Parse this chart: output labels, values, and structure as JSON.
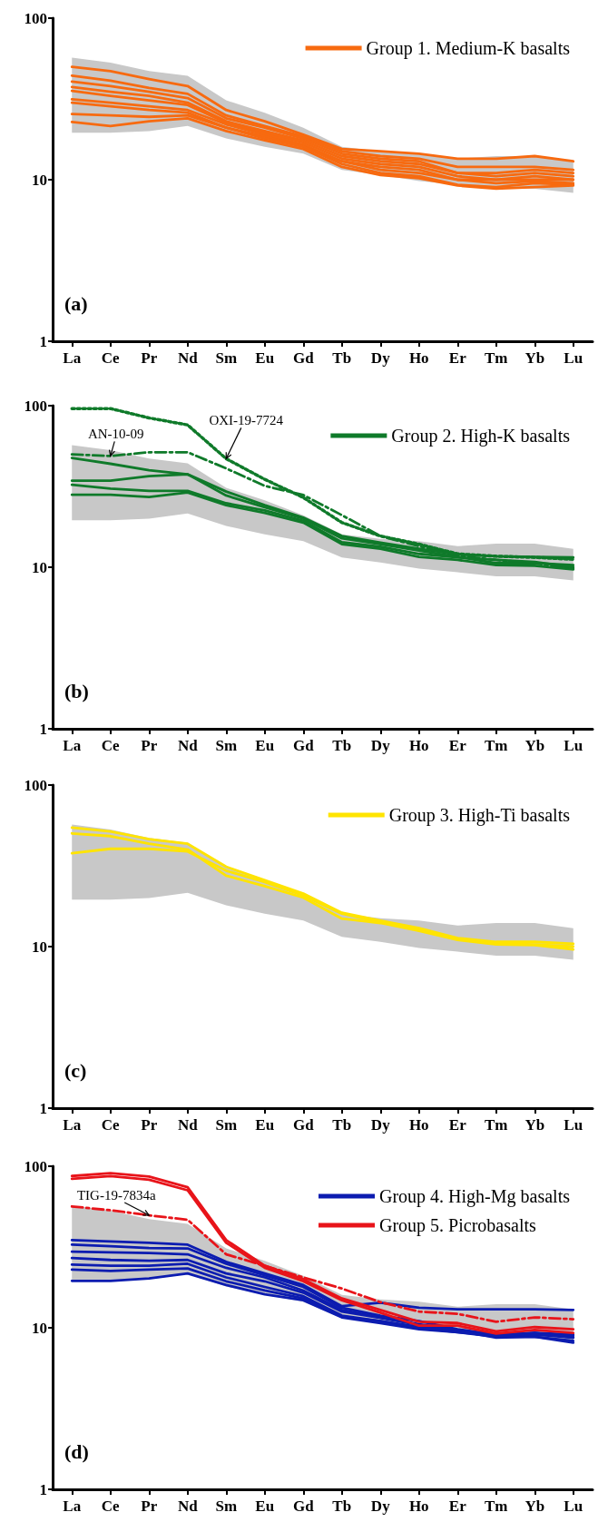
{
  "chart_data": [
    {
      "type": "line",
      "title": "(a)",
      "categories": [
        "La",
        "Ce",
        "Pr",
        "Nd",
        "Sm",
        "Eu",
        "Gd",
        "Tb",
        "Dy",
        "Ho",
        "Er",
        "Tm",
        "Yb",
        "Lu"
      ],
      "log": true,
      "ylim": [
        1,
        100
      ],
      "yticks": [
        1,
        10,
        100
      ],
      "legend": "top right",
      "series": [
        {
          "color": "#c8c8c8",
          "values": [
            null,
            null,
            null,
            null,
            null,
            null,
            null,
            null,
            null,
            null,
            null,
            null,
            null,
            null
          ],
          "lower": [
            19.5,
            19.5,
            20,
            21.5,
            18,
            16,
            14.5,
            11.5,
            10.7,
            9.8,
            9.3,
            8.8,
            8.8,
            8.3
          ],
          "upper": [
            57,
            53,
            47,
            44,
            31,
            26,
            21,
            16,
            15,
            14.5,
            13.5,
            14,
            14,
            13
          ]
        },
        {
          "name": "Group 1. Medium-K basalts",
          "color": "#f76a10",
          "values": [
            50,
            47,
            42,
            38,
            27,
            23,
            19,
            15.5,
            15,
            14.5,
            13.5,
            13.5,
            14,
            13
          ]
        },
        {
          "color": "#f76a10",
          "values": [
            44,
            41,
            37,
            34,
            25,
            21.5,
            18.5,
            15,
            14,
            13.5,
            12,
            12,
            12,
            11.5
          ]
        },
        {
          "color": "#f76a10",
          "values": [
            40.5,
            38,
            35,
            32,
            24,
            21,
            18,
            14.5,
            13.5,
            13,
            11,
            11,
            11.5,
            11
          ]
        },
        {
          "color": "#f76a10",
          "values": [
            37.5,
            35,
            33,
            30,
            23,
            20,
            17.5,
            14,
            13,
            12.5,
            11,
            10.5,
            11,
            10.5
          ]
        },
        {
          "color": "#f76a10",
          "values": [
            35.5,
            33,
            31,
            29,
            22.5,
            19.5,
            17,
            13.5,
            12.5,
            12,
            10.5,
            10,
            10.5,
            10
          ]
        },
        {
          "color": "#f76a10",
          "values": [
            31.5,
            30,
            28.5,
            27,
            22,
            19,
            16.5,
            13,
            12,
            11.5,
            10,
            10,
            10,
            10
          ]
        },
        {
          "color": "#f76a10",
          "values": [
            30,
            28.5,
            27,
            26,
            21,
            18.5,
            16,
            13,
            11.5,
            11,
            10,
            9.5,
            9.8,
            9.5
          ]
        },
        {
          "color": "#f76a10",
          "values": [
            25.5,
            25,
            24.5,
            25,
            21,
            18,
            16,
            12.5,
            11,
            10.5,
            9.3,
            9,
            9.5,
            9.3
          ]
        },
        {
          "color": "#f76a10",
          "values": [
            22.8,
            21.5,
            23,
            24,
            20,
            17.5,
            15.5,
            12,
            10.7,
            10.2,
            9.2,
            8.8,
            9,
            9.2
          ]
        }
      ]
    },
    {
      "type": "line",
      "title": "(b)",
      "categories": [
        "La",
        "Ce",
        "Pr",
        "Nd",
        "Sm",
        "Eu",
        "Gd",
        "Tb",
        "Dy",
        "Ho",
        "Er",
        "Tm",
        "Yb",
        "Lu"
      ],
      "log": true,
      "ylim": [
        1,
        100
      ],
      "yticks": [
        1,
        10,
        100
      ],
      "legend": "top right",
      "annotations": [
        {
          "text": "AN-10-09",
          "x": "Ce",
          "y": 48.8
        },
        {
          "text": "OXI-19-7724",
          "x": "Sm",
          "y": 47
        }
      ],
      "series": [
        {
          "color": "#c8c8c8",
          "values": [
            null,
            null,
            null,
            null,
            null,
            null,
            null,
            null,
            null,
            null,
            null,
            null,
            null,
            null
          ],
          "lower": [
            19.5,
            19.5,
            20,
            21.5,
            18,
            16,
            14.5,
            11.5,
            10.7,
            9.8,
            9.3,
            8.8,
            8.8,
            8.3
          ],
          "upper": [
            57,
            53,
            47,
            44,
            31,
            26,
            21,
            16,
            15,
            14.5,
            13.5,
            14,
            14,
            13
          ]
        },
        {
          "color": "#0f7a2a",
          "line_style": "dotted",
          "values": [
            96,
            96,
            84,
            76,
            47,
            35,
            27,
            18.9,
            15.6,
            13.9,
            12.1,
            11.7,
            11.5,
            11.2
          ]
        },
        {
          "color": "#0f7a2a",
          "line_style": "dashed",
          "values": [
            50,
            48.8,
            51.5,
            51.5,
            40.9,
            31.9,
            28,
            21,
            15.6,
            13.5,
            11.8,
            11.1,
            10.6,
            9.8
          ]
        },
        {
          "name": "Group 2. High-K basalts",
          "color": "#0f7a2a",
          "values": [
            47.5,
            43.7,
            39.8,
            37.6,
            29.4,
            24.2,
            20.3,
            15.6,
            14.2,
            13,
            12,
            11.7,
            11.6,
            11.5
          ]
        },
        {
          "color": "#0f7a2a",
          "values": [
            34.3,
            34.3,
            36.6,
            37.6,
            27.8,
            23.5,
            20,
            15.1,
            13.9,
            12.7,
            11.6,
            10.6,
            10.6,
            10.3
          ]
        },
        {
          "color": "#0f7a2a",
          "values": [
            32.4,
            30.7,
            29.7,
            29.7,
            24.9,
            22.5,
            19.4,
            14.3,
            13.4,
            12.1,
            11.5,
            11.1,
            10.8,
            10
          ]
        },
        {
          "color": "#0f7a2a",
          "values": [
            28.1,
            28.1,
            27.2,
            29,
            24.2,
            21.7,
            18.9,
            13.9,
            13,
            11.6,
            11.1,
            10.3,
            10.2,
            9.7
          ]
        }
      ]
    },
    {
      "type": "line",
      "title": "(c)",
      "categories": [
        "La",
        "Ce",
        "Pr",
        "Nd",
        "Sm",
        "Eu",
        "Gd",
        "Tb",
        "Dy",
        "Ho",
        "Er",
        "Tm",
        "Yb",
        "Lu"
      ],
      "log": true,
      "ylim": [
        1,
        100
      ],
      "yticks": [
        1,
        10,
        100
      ],
      "legend": "top right",
      "series": [
        {
          "color": "#c8c8c8",
          "values": [
            null,
            null,
            null,
            null,
            null,
            null,
            null,
            null,
            null,
            null,
            null,
            null,
            null,
            null
          ],
          "lower": [
            19.5,
            19.5,
            20,
            21.5,
            18,
            16,
            14.5,
            11.5,
            10.7,
            9.8,
            9.3,
            8.8,
            8.8,
            8.3
          ],
          "upper": [
            57,
            53,
            47,
            44,
            31,
            26,
            21,
            16,
            15,
            14.5,
            13.5,
            14,
            14,
            13
          ]
        },
        {
          "name": "Group 3. High-Ti basalts",
          "color": "#ffe400",
          "values": [
            54.5,
            51.6,
            46.2,
            43.3,
            31.2,
            25.8,
            21.3,
            16.2,
            14.5,
            13,
            11.3,
            10.7,
            10.7,
            10.4
          ]
        },
        {
          "color": "#ffe400",
          "values": [
            50.2,
            48.3,
            43.3,
            39.9,
            27.5,
            23.7,
            20.1,
            14.9,
            14,
            12.5,
            11,
            10.3,
            10.2,
            9.6
          ]
        },
        {
          "color": "#ffe400",
          "values": [
            37.8,
            40.3,
            40.3,
            38.8,
            29.5,
            25.1,
            20.7,
            16,
            14.1,
            12.7,
            11.2,
            10.4,
            10.3,
            10
          ]
        }
      ]
    },
    {
      "type": "line",
      "title": "(d)",
      "categories": [
        "La",
        "Ce",
        "Pr",
        "Nd",
        "Sm",
        "Eu",
        "Gd",
        "Tb",
        "Dy",
        "Ho",
        "Er",
        "Tm",
        "Yb",
        "Lu"
      ],
      "log": true,
      "ylim": [
        1,
        100
      ],
      "yticks": [
        1,
        10,
        100
      ],
      "legend": "top right",
      "annotations": [
        {
          "text": "TIG-19-7834a",
          "x": "Pr",
          "y": 49.7
        }
      ],
      "series": [
        {
          "color": "#c8c8c8",
          "values": [
            null,
            null,
            null,
            null,
            null,
            null,
            null,
            null,
            null,
            null,
            null,
            null,
            null,
            null
          ],
          "lower": [
            19.5,
            19.5,
            20,
            21.5,
            18,
            16,
            14.5,
            11.5,
            10.7,
            9.8,
            9.3,
            8.8,
            8.8,
            8.3
          ],
          "upper": [
            57,
            53,
            47,
            44,
            31,
            26,
            21,
            16,
            15,
            14.5,
            13.5,
            14,
            14,
            13
          ]
        },
        {
          "name": "Group 4. High-Mg basalts",
          "color": "#0c1cb0",
          "values": [
            34.9,
            34.2,
            33.6,
            32.7,
            25.6,
            21.7,
            18.4,
            13.6,
            14.3,
            13.3,
            13,
            13,
            13,
            12.9
          ]
        },
        {
          "color": "#0c1cb0",
          "values": [
            32.7,
            32,
            31.2,
            31,
            24.9,
            21.1,
            17.9,
            13.3,
            11.9,
            11,
            9.8,
            9.1,
            9.3,
            9.1
          ]
        },
        {
          "color": "#0c1cb0",
          "values": [
            29.6,
            29.3,
            29,
            28.5,
            23.5,
            20.5,
            17,
            12.9,
            11.6,
            10.5,
            9.7,
            8.8,
            9.1,
            8.7
          ]
        },
        {
          "color": "#0c1cb0",
          "values": [
            27,
            26.3,
            26,
            26.3,
            21.7,
            19.4,
            16.5,
            12.6,
            11.5,
            10.4,
            9.6,
            8.7,
            8.8,
            8.3
          ]
        },
        {
          "color": "#0c1cb0",
          "values": [
            24.6,
            24.2,
            24.2,
            24.9,
            20.5,
            17.9,
            15.7,
            11.9,
            11,
            10.1,
            9.6,
            9.1,
            9.1,
            8.9
          ]
        },
        {
          "color": "#0c1cb0",
          "values": [
            22.9,
            22.5,
            22.9,
            23.3,
            19.4,
            17,
            15.2,
            11.7,
            11,
            10,
            9.4,
            8.8,
            8.8,
            8.1
          ]
        },
        {
          "color": "#0c1cb0",
          "values": [
            19.5,
            19.5,
            20.2,
            21.7,
            18.4,
            16.1,
            14.8,
            11.6,
            10.7,
            9.8,
            9.4,
            8.9,
            9.3,
            8.7
          ]
        },
        {
          "color": "#e8141a",
          "line_style": "dashed",
          "values": [
            56.4,
            53.4,
            49.7,
            46.6,
            28.5,
            24.2,
            20.5,
            17.5,
            14.4,
            12.6,
            12.2,
            10.9,
            11.6,
            11.3
          ]
        },
        {
          "name": "Group 5. Picrobasalts",
          "color": "#e8141a",
          "values": [
            87,
            90.6,
            86.3,
            74.1,
            34.9,
            24.2,
            20,
            15.2,
            12.9,
            10.9,
            10.7,
            9.5,
            10.1,
            9.8
          ]
        },
        {
          "color": "#e8141a",
          "values": [
            83.5,
            86.8,
            82.6,
            71,
            33.6,
            23.5,
            19.4,
            14.8,
            12.4,
            10.3,
            10.3,
            9.2,
            9.7,
            9.3
          ]
        }
      ]
    }
  ]
}
